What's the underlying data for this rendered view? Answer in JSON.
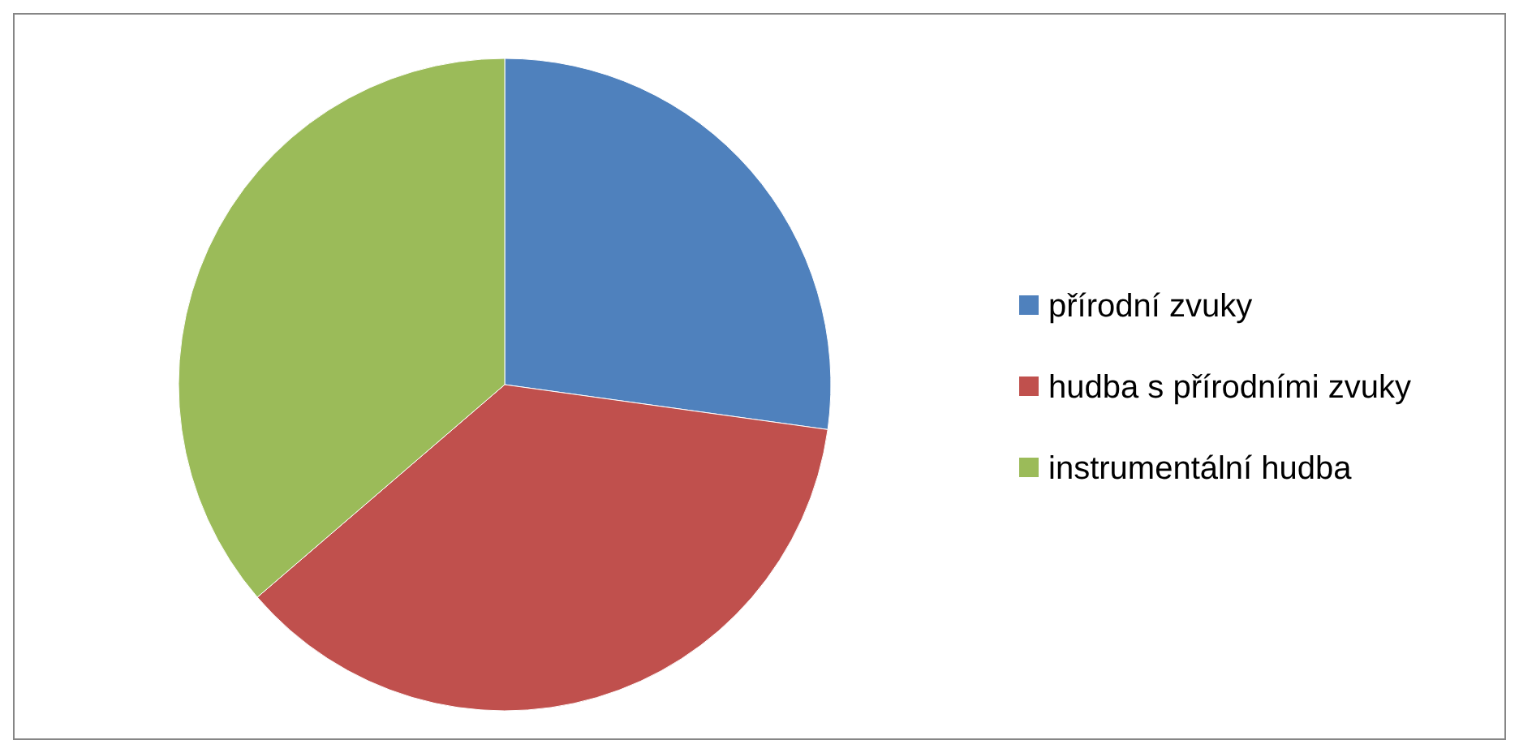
{
  "chart_data": {
    "type": "pie",
    "categories": [
      "přírodní zvuky",
      "hudba s přírodními zvuky",
      "instrumentální hudba"
    ],
    "values": [
      27.2,
      36.5,
      36.3
    ],
    "colors": [
      "#4f81bd",
      "#c0504d",
      "#9bbb59"
    ],
    "legend": "right"
  }
}
